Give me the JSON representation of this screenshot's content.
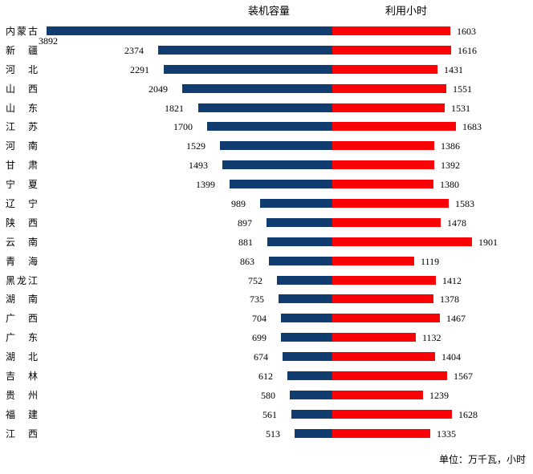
{
  "header": {
    "left_label": "装机容量",
    "right_label": "利用小时"
  },
  "footer": {
    "unit_note": "单位：万千瓦，小时"
  },
  "colors": {
    "capacity_bar": "#113c6f",
    "hours_bar": "#fa0307",
    "text": "#000000",
    "background": "#ffffff"
  },
  "chart_data": {
    "type": "bar",
    "variant": "bidirectional-tornado",
    "orientation": "horizontal",
    "title": "",
    "unit_note": "单位：万千瓦，小时",
    "legend_position": "top",
    "grid": false,
    "center_axis_value": 0,
    "categories": [
      "内蒙古",
      "新疆",
      "河北",
      "山西",
      "山东",
      "江苏",
      "河南",
      "甘肃",
      "宁夏",
      "辽宁",
      "陕西",
      "云南",
      "青海",
      "黑龙江",
      "湖南",
      "广西",
      "广东",
      "湖北",
      "吉林",
      "贵州",
      "福建",
      "江西"
    ],
    "series": [
      {
        "name": "装机容量",
        "direction": "left",
        "color": "#113c6f",
        "unit": "万千瓦",
        "values": [
          3892,
          2374,
          2291,
          2049,
          1821,
          1700,
          1529,
          1493,
          1399,
          989,
          897,
          881,
          863,
          752,
          735,
          704,
          699,
          674,
          612,
          580,
          561,
          513
        ]
      },
      {
        "name": "利用小时",
        "direction": "right",
        "color": "#fa0307",
        "unit": "小时",
        "values": [
          1603,
          1616,
          1431,
          1551,
          1531,
          1683,
          1386,
          1392,
          1380,
          1583,
          1478,
          1901,
          1119,
          1412,
          1378,
          1467,
          1132,
          1404,
          1567,
          1239,
          1628,
          1335
        ]
      }
    ],
    "value_axis_range_left": [
      0,
      3900
    ],
    "value_axis_range_right": [
      0,
      1950
    ]
  }
}
